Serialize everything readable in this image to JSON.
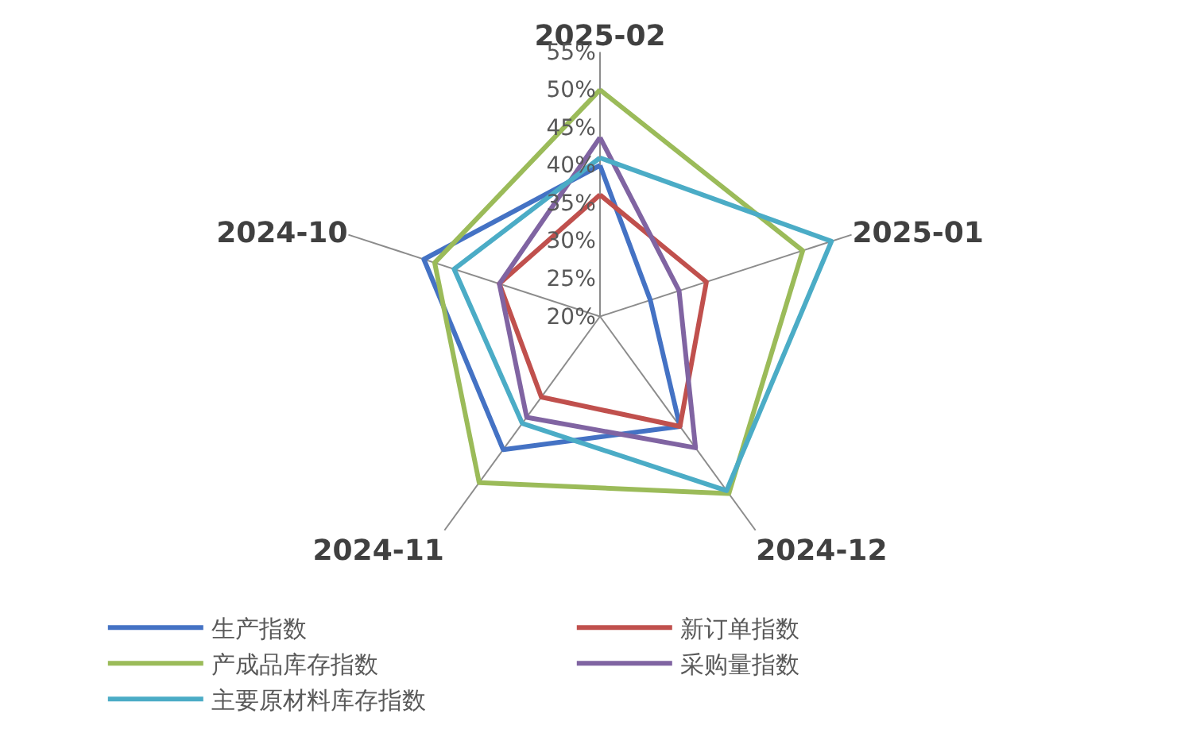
{
  "chart_data": {
    "type": "radar",
    "categories": [
      "2025-02",
      "2025-01",
      "2024-12",
      "2024-11",
      "2024-10"
    ],
    "ylim": [
      20,
      55
    ],
    "yticks": [
      {
        "value": 20,
        "label": "20%"
      },
      {
        "value": 25,
        "label": "25%"
      },
      {
        "value": 30,
        "label": "30%"
      },
      {
        "value": 35,
        "label": "35%"
      },
      {
        "value": 40,
        "label": "40%"
      },
      {
        "value": 45,
        "label": "45%"
      },
      {
        "value": 50,
        "label": "50%"
      },
      {
        "value": 55,
        "label": "55%"
      }
    ],
    "grid": "x",
    "legend": "bottom",
    "marker": "none",
    "line_style": "solid",
    "series": [
      {
        "name": "生产指数",
        "color": "#4472c4",
        "values": [
          40.0,
          27.0,
          38.0,
          41.8,
          44.5
        ]
      },
      {
        "name": "新订单指数",
        "color": "#c0504d",
        "values": [
          36.1,
          34.8,
          38.0,
          33.2,
          34.0
        ]
      },
      {
        "name": "产成品库存指数",
        "color": "#9bbb59",
        "values": [
          50.0,
          48.2,
          49.0,
          47.2,
          43.0
        ]
      },
      {
        "name": "采购量指数",
        "color": "#8064a2",
        "values": [
          43.7,
          31.0,
          41.5,
          36.5,
          34.0
        ]
      },
      {
        "name": "主要原材料库存指数",
        "color": "#4bacc6",
        "values": [
          41.0,
          52.2,
          48.5,
          37.5,
          40.3
        ]
      }
    ]
  }
}
